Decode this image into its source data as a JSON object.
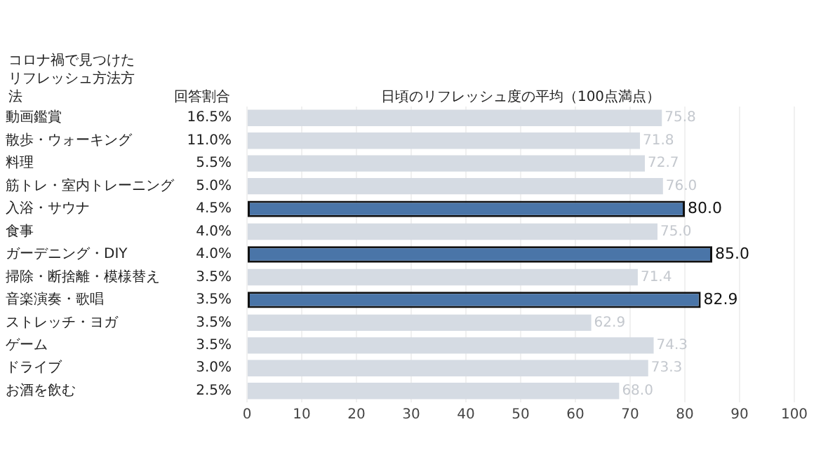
{
  "chart_data": {
    "type": "bar",
    "orientation": "horizontal",
    "title": "日頃のリフレッシュ度の平均（100点満点）",
    "ylabel": "コロナ禍で見つけたリフレッシュ方法方法",
    "categories": [
      "動画鑑賞",
      "散歩・ウォーキング",
      "料理",
      "筋トレ・室内トレーニング",
      "入浴・サウナ",
      "食事",
      "ガーデニング・DIY",
      "掃除・断捨離・模様替え",
      "音楽演奏・歌唱",
      "ストレッチ・ヨガ",
      "ゲーム",
      "ドライブ",
      "お酒を飲む"
    ],
    "values": [
      75.8,
      71.8,
      72.7,
      76.0,
      80.0,
      75.0,
      85.0,
      71.4,
      82.9,
      62.9,
      74.3,
      73.3,
      68.0
    ],
    "colors": [
      "#d5dbe3",
      "#d5dbe3",
      "#d5dbe3",
      "#d5dbe3",
      "#4a75a8",
      "#d5dbe3",
      "#4a75a8",
      "#d5dbe3",
      "#4a75a8",
      "#d5dbe3",
      "#d5dbe3",
      "#d5dbe3",
      "#d5dbe3"
    ],
    "value_labels": [
      "75.8",
      "71.8",
      "72.7",
      "76.0",
      "80.0",
      "75.0",
      "85.0",
      "71.4",
      "82.9",
      "62.9",
      "74.3",
      "73.3",
      "68.0"
    ],
    "xlim": [
      0,
      100
    ],
    "xticks": [
      0,
      10,
      20,
      30,
      40,
      50,
      60,
      70,
      80,
      90,
      100
    ],
    "grid": "x",
    "annotations": [
      "回答割合",
      "16.5%",
      "11.0%",
      "5.5%",
      "5.0%",
      "4.5%",
      "4.0%",
      "4.0%",
      "3.5%",
      "3.5%",
      "3.5%",
      "3.5%",
      "3.0%",
      "2.5%"
    ]
  }
}
